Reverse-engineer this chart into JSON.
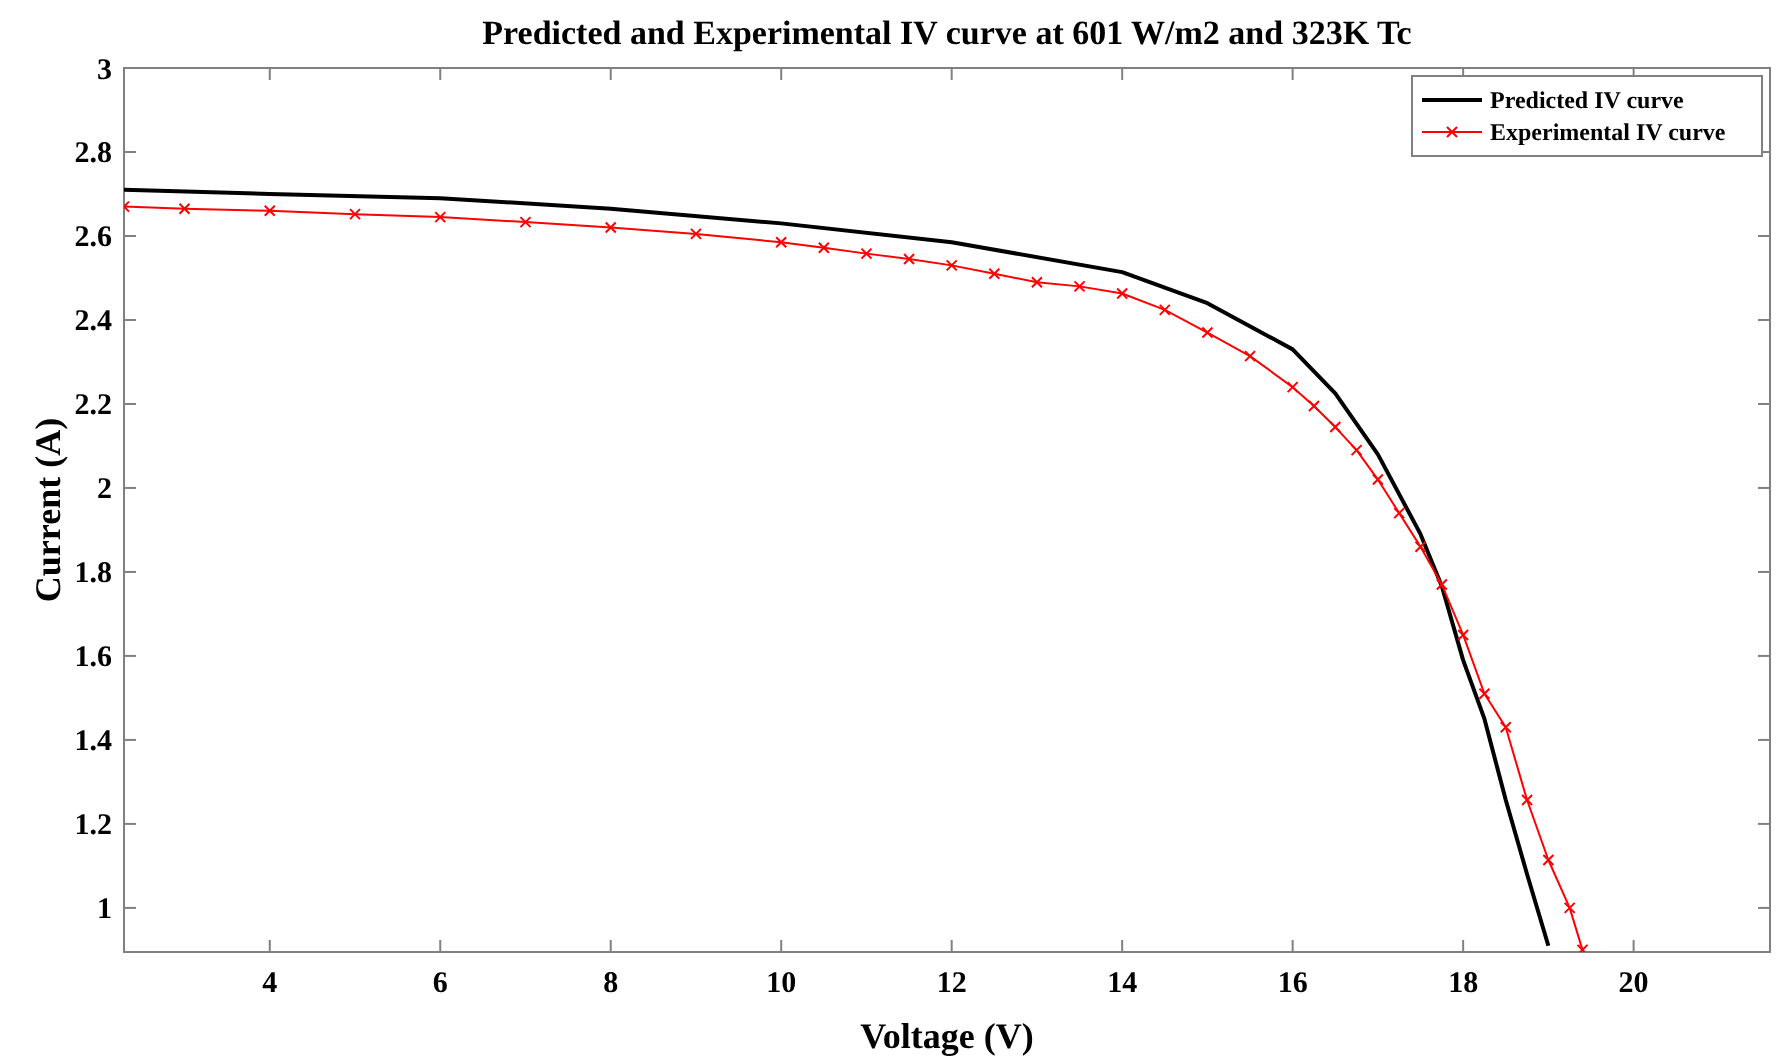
{
  "chart_data": {
    "type": "line",
    "title": "Predicted and Experimental IV curve at 601 W/m2 and 323K Tc",
    "xlabel": "Voltage (V)",
    "ylabel": "Current (A)",
    "xlim": [
      2.29,
      21.6
    ],
    "xticks": [
      4,
      6,
      8,
      10,
      12,
      14,
      16,
      18,
      20
    ],
    "ylim": [
      0.895,
      3
    ],
    "yticks": [
      1,
      1.2,
      1.4,
      1.6,
      1.8,
      2,
      2.2,
      2.4,
      2.6,
      2.8,
      3
    ],
    "grid": false,
    "legend": "top right",
    "series": [
      {
        "name": "Predicted IV curve",
        "color": "#000000",
        "marker": "none",
        "x": [
          2.29,
          4,
          6,
          8,
          10,
          12,
          14,
          15,
          16,
          16.5,
          17,
          17.5,
          17.75,
          18,
          18.25,
          18.5,
          18.75,
          19.0
        ],
        "values": [
          2.71,
          2.7,
          2.69,
          2.665,
          2.63,
          2.585,
          2.514,
          2.44,
          2.33,
          2.225,
          2.08,
          1.89,
          1.766,
          1.59,
          1.45,
          1.257,
          1.08,
          0.91
        ]
      },
      {
        "name": "Experimental IV curve",
        "color": "#ff0000",
        "marker": "cross",
        "x": [
          2.29,
          3,
          4,
          5,
          6,
          7,
          8,
          9,
          10,
          10.5,
          11,
          11.5,
          12,
          12.5,
          13,
          13.5,
          14,
          14.5,
          15,
          15.5,
          16,
          16.25,
          16.5,
          16.75,
          17,
          17.25,
          17.5,
          17.75,
          18,
          18.25,
          18.5,
          18.75,
          19,
          19.25,
          19.4
        ],
        "values": [
          2.67,
          2.665,
          2.66,
          2.652,
          2.645,
          2.633,
          2.62,
          2.605,
          2.585,
          2.572,
          2.558,
          2.545,
          2.53,
          2.51,
          2.49,
          2.48,
          2.463,
          2.424,
          2.37,
          2.314,
          2.24,
          2.195,
          2.145,
          2.09,
          2.02,
          1.94,
          1.86,
          1.77,
          1.65,
          1.51,
          1.43,
          1.257,
          1.114,
          1.0,
          0.9
        ]
      }
    ]
  }
}
